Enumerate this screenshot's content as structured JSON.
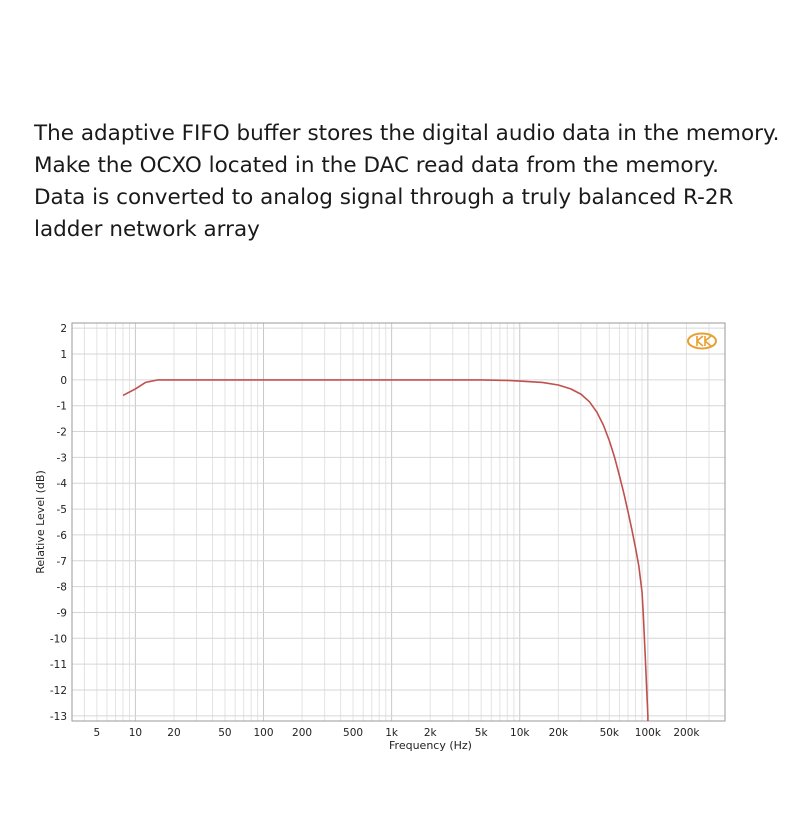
{
  "description": {
    "lines": [
      "The adaptive FIFO buffer stores the digital audio data in the memory.",
      "Make the OCXO located in the DAC read data from the memory.",
      "Data is converted to analog signal through a truly balanced R-2R",
      "ladder network array"
    ]
  },
  "chart_data": {
    "type": "line",
    "title": "",
    "xlabel": "Frequency (Hz)",
    "ylabel": "Relative Level (dB)",
    "x_scale": "log",
    "xlim": [
      3.2,
      400000
    ],
    "ylim": [
      -13.2,
      2.2
    ],
    "grid": true,
    "x_ticks": [
      {
        "value": 5,
        "label": "5"
      },
      {
        "value": 10,
        "label": "10"
      },
      {
        "value": 20,
        "label": "20"
      },
      {
        "value": 50,
        "label": "50"
      },
      {
        "value": 100,
        "label": "100"
      },
      {
        "value": 200,
        "label": "200"
      },
      {
        "value": 500,
        "label": "500"
      },
      {
        "value": 1000,
        "label": "1k"
      },
      {
        "value": 2000,
        "label": "2k"
      },
      {
        "value": 5000,
        "label": "5k"
      },
      {
        "value": 10000,
        "label": "10k"
      },
      {
        "value": 20000,
        "label": "20k"
      },
      {
        "value": 50000,
        "label": "50k"
      },
      {
        "value": 100000,
        "label": "100k"
      },
      {
        "value": 200000,
        "label": "200k"
      }
    ],
    "y_ticks": [
      2,
      1,
      0,
      -1,
      -2,
      -3,
      -4,
      -5,
      -6,
      -7,
      -8,
      -9,
      -10,
      -11,
      -12,
      -13
    ],
    "series": [
      {
        "color": "#c0504d",
        "x": [
          8,
          10,
          12,
          15,
          20,
          50,
          100,
          1000,
          5000,
          8000,
          10000,
          15000,
          20000,
          25000,
          30000,
          35000,
          40000,
          45000,
          50000,
          55000,
          60000,
          65000,
          70000,
          75000,
          80000,
          85000,
          90000,
          92000,
          94000,
          96000,
          98000,
          100000,
          100000
        ],
        "y": [
          -0.6,
          -0.35,
          -0.1,
          0.0,
          0.0,
          0.0,
          0.0,
          0.0,
          0.0,
          -0.02,
          -0.05,
          -0.1,
          -0.2,
          -0.35,
          -0.55,
          -0.85,
          -1.25,
          -1.75,
          -2.35,
          -3.0,
          -3.7,
          -4.4,
          -5.1,
          -5.8,
          -6.5,
          -7.2,
          -8.2,
          -9.0,
          -10.0,
          -11.0,
          -12.0,
          -13.0,
          -13.2
        ]
      }
    ]
  }
}
